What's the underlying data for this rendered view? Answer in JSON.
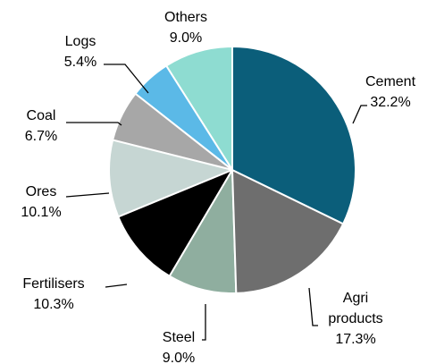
{
  "chart_data": {
    "type": "pie",
    "categories": [
      "Cement",
      "Agri products",
      "Steel",
      "Fertilisers",
      "Ores",
      "Coal",
      "Logs",
      "Others"
    ],
    "values": [
      32.2,
      17.3,
      9.0,
      10.3,
      10.1,
      6.7,
      5.4,
      9.0
    ],
    "value_labels": [
      "32.2%",
      "17.3%",
      "9.0%",
      "10.3%",
      "10.1%",
      "6.7%",
      "5.4%",
      "9.0%"
    ],
    "colors": [
      "#0b5e7a",
      "#6e6e6e",
      "#8fae9f",
      "#000000",
      "#c6d6d3",
      "#a7a7a7",
      "#5bb9e7",
      "#8edcd1"
    ]
  }
}
